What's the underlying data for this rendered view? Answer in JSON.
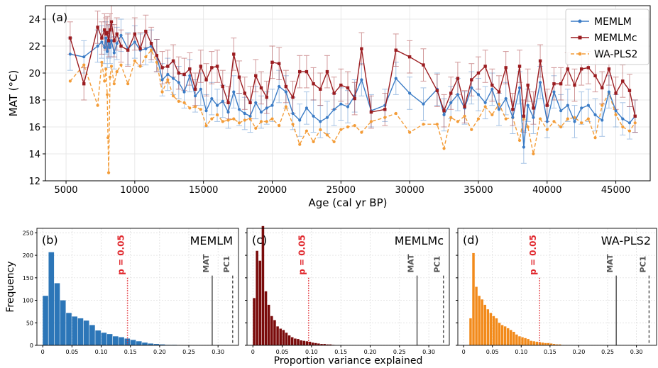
{
  "chart_data": [
    {
      "type": "line",
      "panel_label": "(a)",
      "xlabel": "Age (cal yr BP)",
      "ylabel": "MAT (°C)",
      "xlim": [
        3500,
        47500
      ],
      "ylim": [
        12,
        25
      ],
      "x_ticks": [
        5000,
        10000,
        15000,
        20000,
        25000,
        30000,
        35000,
        40000,
        45000
      ],
      "y_ticks": [
        12,
        14,
        16,
        18,
        20,
        22,
        24
      ],
      "grid": true,
      "legend_position": "top-right",
      "legend": [
        "MEMLM",
        "MEMLMc",
        "WA-PLS2"
      ],
      "series": [
        {
          "name": "MEMLM",
          "color": "#3b7cc6",
          "marker": "circle",
          "line_style": "solid",
          "error_bars": true,
          "x": [
            5300,
            6300,
            7300,
            7600,
            7800,
            7900,
            8000,
            8100,
            8200,
            8300,
            8500,
            8700,
            9000,
            9500,
            10000,
            10400,
            10800,
            11200,
            11600,
            12000,
            12400,
            12800,
            13200,
            13600,
            14000,
            14400,
            14800,
            15200,
            15600,
            16000,
            16400,
            16800,
            17200,
            17600,
            18000,
            18400,
            18800,
            19200,
            19600,
            20000,
            20500,
            21000,
            21500,
            22000,
            22500,
            23000,
            23500,
            24000,
            24500,
            25000,
            25500,
            26000,
            26500,
            27200,
            28200,
            29000,
            30000,
            31000,
            32000,
            32500,
            33000,
            33500,
            34000,
            34500,
            35000,
            35500,
            36000,
            36500,
            37000,
            37500,
            38000,
            38300,
            38600,
            39000,
            39500,
            40000,
            40500,
            41000,
            41500,
            42000,
            42500,
            43000,
            43500,
            44000,
            44500,
            45000,
            45500,
            46000,
            46400
          ],
          "values": [
            21.4,
            21.2,
            22.0,
            22.3,
            21.9,
            22.6,
            21.6,
            22.3,
            21.9,
            22.4,
            21.5,
            22.2,
            22.8,
            21.8,
            22.3,
            21.7,
            21.8,
            22.0,
            21.3,
            19.5,
            19.9,
            19.6,
            19.3,
            18.6,
            19.8,
            18.3,
            18.8,
            17.2,
            18.1,
            17.6,
            17.9,
            17.1,
            18.6,
            17.3,
            17.0,
            16.8,
            17.8,
            17.1,
            17.4,
            17.6,
            19.0,
            18.6,
            17.0,
            16.5,
            17.4,
            16.8,
            16.4,
            16.7,
            17.3,
            17.7,
            17.5,
            18.3,
            19.5,
            17.2,
            17.6,
            19.6,
            18.5,
            17.7,
            18.8,
            16.9,
            17.8,
            18.4,
            17.4,
            18.9,
            18.4,
            17.8,
            18.8,
            17.3,
            18.1,
            16.7,
            18.9,
            14.5,
            17.6,
            16.7,
            19.3,
            16.4,
            18.6,
            17.2,
            17.6,
            16.4,
            17.4,
            17.6,
            16.9,
            16.5,
            18.6,
            17.2,
            16.6,
            16.3,
            16.8
          ]
        },
        {
          "name": "MEMLMc",
          "color": "#9b1c20",
          "marker": "square",
          "line_style": "solid",
          "error_bars": true,
          "x": [
            5300,
            6300,
            7300,
            7600,
            7800,
            7900,
            8000,
            8100,
            8200,
            8300,
            8500,
            8700,
            9000,
            9500,
            10000,
            10400,
            10800,
            11200,
            11600,
            12000,
            12400,
            12800,
            13200,
            13600,
            14000,
            14400,
            14800,
            15200,
            15600,
            16000,
            16400,
            16800,
            17200,
            17600,
            18000,
            18400,
            18800,
            19200,
            19600,
            20000,
            20500,
            21000,
            21500,
            22000,
            22500,
            23000,
            23500,
            24000,
            24500,
            25000,
            25500,
            26000,
            26500,
            27200,
            28200,
            29000,
            30000,
            31000,
            32000,
            32500,
            33000,
            33500,
            34000,
            34500,
            35000,
            35500,
            36000,
            36500,
            37000,
            37500,
            38000,
            38300,
            38600,
            39000,
            39500,
            40000,
            40500,
            41000,
            41500,
            42000,
            42500,
            43000,
            43500,
            44000,
            44500,
            45000,
            45500,
            46000,
            46400
          ],
          "values": [
            22.6,
            19.2,
            23.4,
            22.6,
            23.2,
            22.9,
            23.0,
            22.4,
            23.2,
            23.8,
            22.4,
            22.9,
            22.0,
            21.7,
            22.9,
            21.8,
            23.1,
            22.2,
            21.3,
            20.4,
            20.5,
            20.9,
            20.0,
            19.9,
            20.3,
            18.8,
            20.5,
            19.5,
            20.4,
            20.5,
            19.0,
            17.8,
            21.4,
            19.7,
            18.5,
            17.8,
            19.8,
            18.9,
            18.2,
            20.8,
            20.7,
            19.0,
            18.2,
            20.1,
            20.1,
            19.2,
            18.8,
            20.1,
            18.5,
            19.1,
            18.9,
            18.1,
            21.8,
            17.1,
            17.3,
            21.7,
            21.2,
            20.6,
            18.7,
            17.2,
            18.5,
            19.6,
            17.5,
            19.5,
            20.0,
            20.5,
            19.1,
            18.6,
            20.4,
            17.3,
            20.5,
            16.8,
            19.1,
            17.4,
            20.9,
            17.6,
            19.2,
            19.2,
            20.3,
            19.1,
            20.3,
            20.4,
            19.8,
            18.9,
            20.3,
            18.5,
            19.4,
            18.7,
            16.8
          ]
        },
        {
          "name": "WA-PLS2",
          "color": "#f39c38",
          "marker": "circle",
          "line_style": "dashed",
          "error_bars": false,
          "x": [
            5300,
            6300,
            7300,
            7600,
            7800,
            7900,
            8000,
            8050,
            8100,
            8200,
            8300,
            8500,
            8700,
            9000,
            9500,
            10000,
            10400,
            10800,
            11200,
            11600,
            12000,
            12400,
            12800,
            13200,
            13600,
            14000,
            14400,
            14800,
            15200,
            15600,
            16000,
            16400,
            16800,
            17200,
            17600,
            18000,
            18400,
            18800,
            19200,
            19600,
            20000,
            20500,
            21000,
            21500,
            22000,
            22500,
            23000,
            23500,
            24000,
            24500,
            25000,
            25500,
            26000,
            26500,
            27200,
            28200,
            29000,
            30000,
            31000,
            32000,
            32500,
            33000,
            33500,
            34000,
            34500,
            35000,
            35500,
            36000,
            36500,
            37000,
            37500,
            38000,
            38300,
            38600,
            39000,
            39500,
            40000,
            40500,
            41000,
            41500,
            42000,
            42500,
            43000,
            43500,
            44000,
            44500,
            45000,
            45500,
            46000,
            46400
          ],
          "values": [
            19.4,
            20.6,
            17.6,
            20.8,
            19.4,
            20.3,
            18.4,
            15.2,
            12.6,
            19.7,
            20.5,
            19.2,
            20.1,
            20.6,
            19.2,
            20.9,
            20.5,
            21.2,
            21.7,
            20.8,
            18.6,
            19.5,
            18.3,
            17.9,
            17.8,
            17.4,
            17.5,
            17.3,
            16.1,
            16.6,
            16.9,
            16.4,
            16.5,
            16.6,
            16.3,
            16.5,
            16.6,
            15.9,
            16.4,
            16.4,
            16.6,
            16.1,
            17.5,
            16.2,
            14.7,
            15.7,
            14.9,
            15.8,
            15.4,
            14.9,
            15.8,
            16.0,
            16.1,
            15.6,
            16.4,
            16.7,
            17.0,
            15.6,
            16.2,
            16.2,
            14.4,
            16.7,
            16.4,
            16.8,
            15.8,
            16.6,
            17.5,
            16.9,
            17.7,
            16.6,
            16.7,
            15.0,
            16.8,
            16.0,
            14.0,
            16.6,
            15.8,
            16.4,
            16.0,
            16.6,
            16.7,
            16.3,
            16.6,
            15.2,
            17.6,
            18.5,
            16.9,
            16.0,
            15.7,
            16.3
          ]
        }
      ]
    },
    {
      "type": "bar",
      "panel_label": "(b)",
      "title": "MEMLM",
      "color": "#2c76b8",
      "xlabel": "",
      "ylabel": "Frequency",
      "xlim": [
        -0.01,
        0.335
      ],
      "ylim": [
        0,
        260
      ],
      "x_ticks": [
        0.0,
        0.05,
        0.1,
        0.15,
        0.2,
        0.25,
        0.3
      ],
      "y_ticks": [
        0,
        50,
        100,
        150,
        200,
        250
      ],
      "grid": true,
      "bin_width": 0.01,
      "bin_starts": [
        0.0,
        0.01,
        0.02,
        0.03,
        0.04,
        0.05,
        0.06,
        0.07,
        0.08,
        0.09,
        0.1,
        0.11,
        0.12,
        0.13,
        0.14,
        0.15,
        0.16,
        0.17,
        0.18,
        0.19,
        0.2,
        0.21,
        0.22
      ],
      "values": [
        110,
        207,
        138,
        100,
        72,
        64,
        60,
        55,
        45,
        33,
        28,
        25,
        20,
        18,
        15,
        12,
        9,
        6,
        4,
        3,
        2,
        1,
        1
      ],
      "vlines": [
        {
          "label": "p = 0.05",
          "x": 0.145,
          "style": "dotted",
          "color": "#e0252b"
        },
        {
          "label": "MAT",
          "x": 0.29,
          "style": "solid",
          "color": "#555555"
        },
        {
          "label": "PC1",
          "x": 0.325,
          "style": "dashed",
          "color": "#555555"
        }
      ]
    },
    {
      "type": "bar",
      "panel_label": "(c)",
      "title": "MEMLMc",
      "color": "#7a0b0b",
      "xlabel": "Proportion variance explained",
      "ylabel": "",
      "xlim": [
        -0.01,
        0.335
      ],
      "ylim": [
        0,
        260
      ],
      "x_ticks": [
        0.0,
        0.05,
        0.1,
        0.15,
        0.2,
        0.25,
        0.3
      ],
      "y_ticks": [
        0,
        50,
        100,
        150,
        200,
        250
      ],
      "grid": true,
      "bin_width": 0.005,
      "bin_starts": [
        0.0,
        0.005,
        0.01,
        0.015,
        0.02,
        0.025,
        0.03,
        0.035,
        0.04,
        0.045,
        0.05,
        0.055,
        0.06,
        0.065,
        0.07,
        0.075,
        0.08,
        0.085,
        0.09,
        0.095,
        0.1,
        0.105,
        0.11,
        0.115,
        0.12,
        0.125,
        0.13,
        0.135
      ],
      "values": [
        105,
        210,
        188,
        265,
        120,
        90,
        65,
        56,
        42,
        37,
        34,
        28,
        22,
        18,
        15,
        14,
        11,
        10,
        9,
        8,
        6,
        5,
        4,
        3,
        3,
        2,
        2,
        1
      ],
      "vlines": [
        {
          "label": "p = 0.05",
          "x": 0.095,
          "style": "dotted",
          "color": "#e0252b"
        },
        {
          "label": "MAT",
          "x": 0.28,
          "style": "solid",
          "color": "#555555"
        },
        {
          "label": "PC1",
          "x": 0.325,
          "style": "dashed",
          "color": "#555555"
        }
      ]
    },
    {
      "type": "bar",
      "panel_label": "(d)",
      "title": "WA-PLS2",
      "color": "#f28a1a",
      "xlabel": "",
      "ylabel": "",
      "xlim": [
        -0.01,
        0.335
      ],
      "ylim": [
        0,
        260
      ],
      "x_ticks": [
        0.0,
        0.05,
        0.1,
        0.15,
        0.2,
        0.25,
        0.3
      ],
      "y_ticks": [
        0,
        50,
        100,
        150,
        200,
        250
      ],
      "grid": true,
      "bin_width": 0.005,
      "bin_starts": [
        0.01,
        0.015,
        0.02,
        0.025,
        0.03,
        0.035,
        0.04,
        0.045,
        0.05,
        0.055,
        0.06,
        0.065,
        0.07,
        0.075,
        0.08,
        0.085,
        0.09,
        0.095,
        0.1,
        0.105,
        0.11,
        0.115,
        0.12,
        0.125,
        0.13,
        0.135,
        0.14,
        0.145,
        0.15,
        0.155,
        0.16,
        0.165
      ],
      "values": [
        60,
        205,
        130,
        110,
        102,
        90,
        80,
        72,
        65,
        60,
        50,
        45,
        42,
        38,
        34,
        30,
        24,
        20,
        18,
        16,
        14,
        10,
        9,
        8,
        7,
        6,
        5,
        5,
        4,
        3,
        2,
        2
      ],
      "vlines": [
        {
          "label": "p = 0.05",
          "x": 0.132,
          "style": "dotted",
          "color": "#e0252b"
        },
        {
          "label": "MAT",
          "x": 0.265,
          "style": "solid",
          "color": "#555555"
        },
        {
          "label": "PC1",
          "x": 0.322,
          "style": "dashed",
          "color": "#555555"
        }
      ]
    }
  ]
}
